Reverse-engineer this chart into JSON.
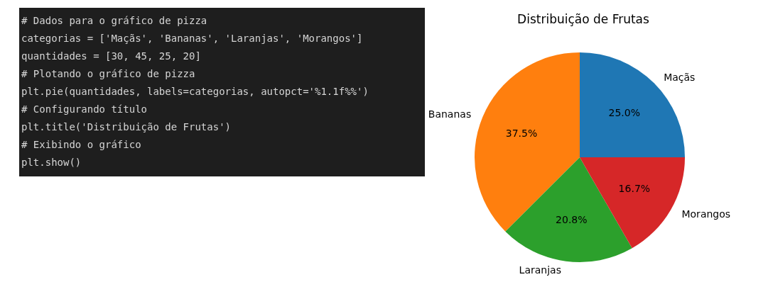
{
  "chart_data": [
    {
      "type": "other",
      "annotations": [
        "# Dados para o gráfico de pizza",
        "categorias = ['Maçãs', 'Bananas', 'Laranjas', 'Morangos']",
        "quantidades = [30, 45, 25, 20]",
        "# Plotando o gráfico de pizza",
        "plt.pie(quantidades, labels=categorias, autopct='%1.1f%%')",
        "# Configurando título",
        "plt.title('Distribuição de Frutas')",
        "# Exibindo o gráfico",
        "plt.show()"
      ]
    },
    {
      "type": "pie",
      "title": "Distribuição de Frutas",
      "categories": [
        "Maçãs",
        "Bananas",
        "Laranjas",
        "Morangos"
      ],
      "values": [
        25.0,
        37.5,
        20.8,
        16.7
      ],
      "colors": [
        "#1f77b4",
        "#ff7f0e",
        "#2ca02c",
        "#d62728"
      ],
      "value_labels": [
        "25.0%",
        "37.5%",
        "20.8%",
        "16.7%"
      ]
    }
  ]
}
